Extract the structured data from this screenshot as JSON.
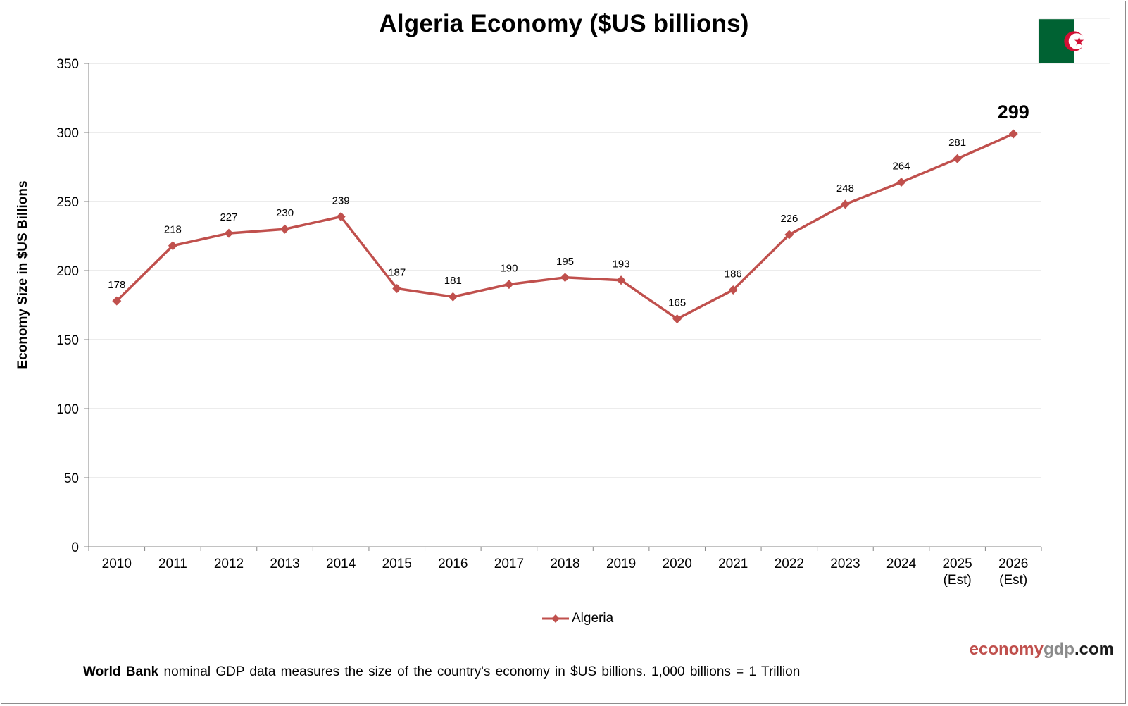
{
  "chart_data": {
    "type": "line",
    "title": "Algeria Economy ($US billions)",
    "xlabel": "",
    "ylabel": "Economy Size in $US Billions",
    "ylim": [
      0,
      350
    ],
    "yticks": [
      "0",
      "50",
      "100",
      "150",
      "200",
      "250",
      "300",
      "350"
    ],
    "categories": [
      "2010",
      "2011",
      "2012",
      "2013",
      "2014",
      "2015",
      "2016",
      "2017",
      "2018",
      "2019",
      "2020",
      "2021",
      "2022",
      "2023",
      "2024",
      "2025\n(Est)",
      "2026\n(Est)"
    ],
    "series": [
      {
        "name": "Algeria",
        "color": "#c0504d",
        "values": [
          178,
          218,
          227,
          230,
          239,
          187,
          181,
          190,
          195,
          193,
          165,
          186,
          226,
          248,
          264,
          281,
          299
        ]
      }
    ],
    "data_labels": [
      "178",
      "218",
      "227",
      "230",
      "239",
      "187",
      "181",
      "190",
      "195",
      "193",
      "165",
      "186",
      "226",
      "248",
      "264",
      "281",
      "299"
    ],
    "highlight_last_label": true,
    "grid": "horizontal",
    "legend_position": "bottom"
  },
  "flag": {
    "country": "Algeria",
    "green": "#006233",
    "white": "#ffffff",
    "red": "#d21034"
  },
  "brand": {
    "part1": "economy",
    "part2": "gdp",
    "part3": ".com"
  },
  "footnote": {
    "bold": "World Bank",
    "rest": " nominal GDP data  measures the size of the country's economy in $US billions.  1,000 billions = 1 Trillion"
  }
}
